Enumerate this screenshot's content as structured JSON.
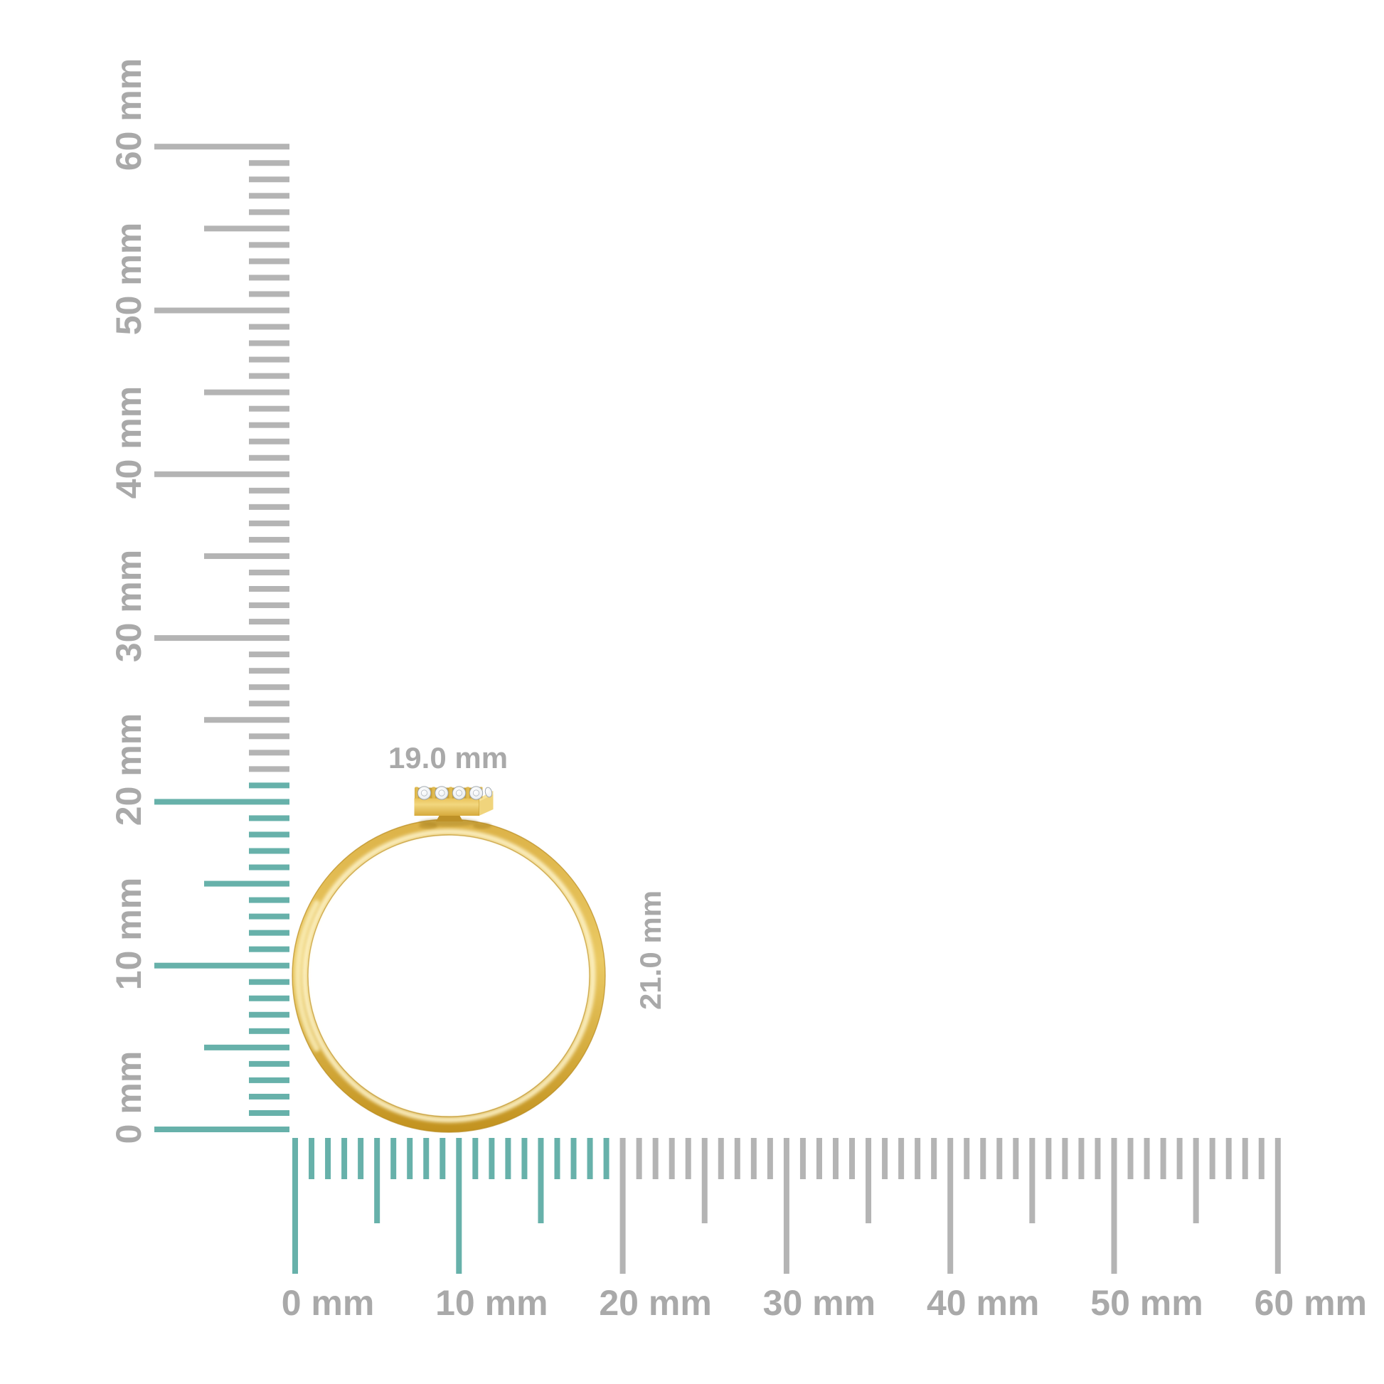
{
  "scene": {
    "background_color": "#ffffff",
    "subject": "gold ring with diamond bar top shown against mm measurement rulers"
  },
  "ring": {
    "width_label": "19.0 mm",
    "height_label": "21.0 mm",
    "width_mm": 19.0,
    "height_mm": 21.0,
    "visible_diamonds": 4,
    "colors": {
      "gold_base": "#e2ba4f",
      "gold_light": "#f6e39c",
      "gold_highlight": "#fdf3c8",
      "gold_dark": "#c2921f",
      "diamond": "#f2f4f6"
    }
  },
  "rulers": {
    "unit": "mm",
    "min_mm": 0,
    "max_mm": 60,
    "major_step_mm": 10,
    "medium_step_mm": 5,
    "colors": {
      "highlight_tick": "#67b1aa",
      "default_tick": "#b4b4b4",
      "label": "#a9a9a9"
    },
    "vertical": {
      "highlight_extent_mm": 21,
      "labels": [
        "0 mm",
        "10 mm",
        "20 mm",
        "30 mm",
        "40 mm",
        "50 mm",
        "60 mm"
      ],
      "label_values_mm": [
        0,
        10,
        20,
        30,
        40,
        50,
        60
      ]
    },
    "horizontal": {
      "highlight_extent_mm": 19,
      "labels": [
        "0 mm",
        "10 mm",
        "20 mm",
        "30 mm",
        "40 mm",
        "50 mm",
        "60 mm"
      ],
      "label_values_mm": [
        0,
        10,
        20,
        30,
        40,
        50,
        60
      ]
    }
  }
}
